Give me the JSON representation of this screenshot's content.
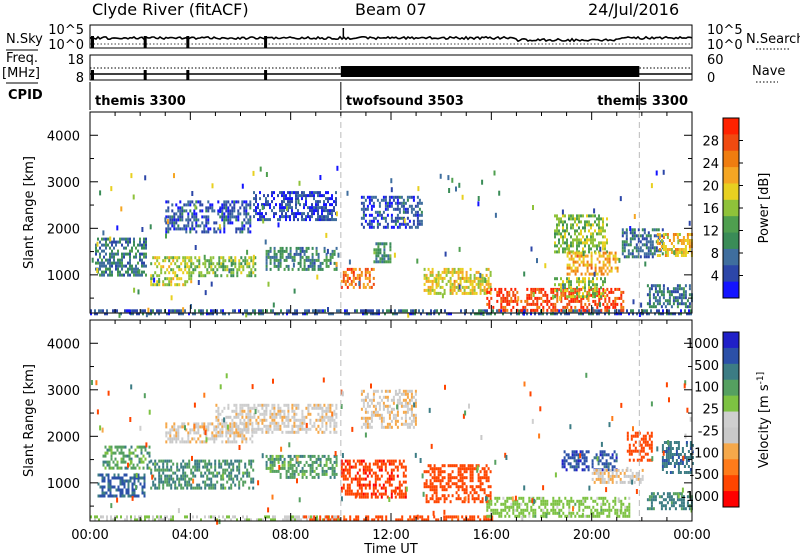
{
  "header": {
    "station": "Clyde River (fitACF)",
    "beam": "Beam 07",
    "date": "24/Jul/2016"
  },
  "summary_panel": {
    "left_labels": [
      "N.Sky",
      "Freq.",
      "[MHz]",
      "CPID"
    ],
    "right_labels": [
      "N.Search",
      "Nave"
    ],
    "nsky_ticks": [
      "10^5",
      "10^0"
    ],
    "nsearch_ticks": [
      "10^5",
      "10^0"
    ],
    "freq_ticks": [
      "18",
      "8"
    ],
    "nave_ticks": [
      "60",
      "0"
    ],
    "cpid_segments": [
      {
        "name": "themis 3300",
        "start_hour": 0.0,
        "end_hour": 10.0
      },
      {
        "name": "twofsound 3503",
        "start_hour": 10.0,
        "end_hour": 21.9
      },
      {
        "name": "themis 3300",
        "start_hour": 21.9,
        "end_hour": 24.0
      }
    ]
  },
  "colors": {
    "power": [
      "#1414ff",
      "#2c46a8",
      "#3f6e9e",
      "#3a8c57",
      "#4f9f4f",
      "#8fc23a",
      "#e8d020",
      "#f5a623",
      "#ef7d10",
      "#f04a10",
      "#ff2200"
    ],
    "velocity": [
      "#ff0000",
      "#ff4500",
      "#ff7b1a",
      "#f5a84a",
      "#c9c9c9",
      "#cfcfcf",
      "#7dc242",
      "#55a060",
      "#3c7c84",
      "#2b50a8",
      "#2020c8"
    ],
    "ground": "#bfbfbf"
  },
  "chart_data": [
    {
      "type": "heatmap",
      "title": "Power",
      "xlabel": "Time UT",
      "ylabel": "Slant Range [km]",
      "xlim": [
        0,
        24
      ],
      "ylim": [
        180,
        4500
      ],
      "x_ticks": [
        "00:00",
        "04:00",
        "08:00",
        "12:00",
        "16:00",
        "20:00",
        "00:00"
      ],
      "y_ticks": [
        "1000",
        "2000",
        "3000",
        "4000"
      ],
      "colorbar": {
        "label": "Power [dB]",
        "ticks": [
          "4",
          "8",
          "12",
          "16",
          "20",
          "24",
          "28"
        ],
        "range": [
          0,
          30
        ]
      },
      "regions": [
        {
          "t0": 0.0,
          "t1": 24.0,
          "r0": 180,
          "r1": 260,
          "value": 6
        },
        {
          "t0": 0.2,
          "t1": 2.2,
          "r0": 1000,
          "r1": 1800,
          "value": 8
        },
        {
          "t0": 2.4,
          "t1": 4.0,
          "r0": 800,
          "r1": 1400,
          "value": 16
        },
        {
          "t0": 3.0,
          "t1": 6.4,
          "r0": 1900,
          "r1": 2600,
          "value": 5
        },
        {
          "t0": 4.0,
          "t1": 6.6,
          "r0": 1000,
          "r1": 1400,
          "value": 14
        },
        {
          "t0": 6.5,
          "t1": 9.8,
          "r0": 2200,
          "r1": 2800,
          "value": 4
        },
        {
          "t0": 7.0,
          "t1": 9.8,
          "r0": 1100,
          "r1": 1600,
          "value": 9
        },
        {
          "t0": 10.0,
          "t1": 11.3,
          "r0": 700,
          "r1": 1150,
          "value": 24
        },
        {
          "t0": 11.3,
          "t1": 12.0,
          "r0": 1300,
          "r1": 1700,
          "value": 10
        },
        {
          "t0": 10.8,
          "t1": 13.2,
          "r0": 2000,
          "r1": 2700,
          "value": 5
        },
        {
          "t0": 13.3,
          "t1": 16.0,
          "r0": 600,
          "r1": 1150,
          "value": 18
        },
        {
          "t0": 15.8,
          "t1": 21.3,
          "r0": 250,
          "r1": 720,
          "value": 27
        },
        {
          "t0": 18.5,
          "t1": 20.5,
          "r0": 500,
          "r1": 950,
          "value": 15
        },
        {
          "t0": 18.5,
          "t1": 20.6,
          "r0": 1500,
          "r1": 2300,
          "value": 14
        },
        {
          "t0": 19.0,
          "t1": 21.0,
          "r0": 1000,
          "r1": 1500,
          "value": 21
        },
        {
          "t0": 21.2,
          "t1": 22.8,
          "r0": 1400,
          "r1": 2000,
          "value": 7
        },
        {
          "t0": 22.6,
          "t1": 24.0,
          "r0": 1400,
          "r1": 1900,
          "value": 19
        },
        {
          "t0": 22.2,
          "t1": 24.0,
          "r0": 300,
          "r1": 800,
          "value": 7
        }
      ]
    },
    {
      "type": "heatmap",
      "title": "Velocity",
      "xlabel": "Time UT",
      "ylabel": "Slant Range [km]",
      "xlim": [
        0,
        24
      ],
      "ylim": [
        180,
        4500
      ],
      "x_ticks": [
        "00:00",
        "04:00",
        "08:00",
        "12:00",
        "16:00",
        "20:00",
        "00:00"
      ],
      "y_ticks": [
        "1000",
        "2000",
        "3000",
        "4000"
      ],
      "colorbar": {
        "label": "Velocity [m s^-1]",
        "ticks": [
          "1000",
          "500",
          "100",
          "25",
          "-25",
          "-100",
          "-500",
          "-1000"
        ]
      },
      "regions": [
        {
          "t0": 0.0,
          "t1": 10.0,
          "r0": 180,
          "r1": 300,
          "value": 20
        },
        {
          "t0": 8.5,
          "t1": 16.0,
          "r0": 180,
          "r1": 300,
          "value": -150
        },
        {
          "t0": 0.3,
          "t1": 2.2,
          "r0": 700,
          "r1": 1200,
          "value": 600
        },
        {
          "t0": 0.5,
          "t1": 2.4,
          "r0": 1300,
          "r1": 1800,
          "value": 150
        },
        {
          "t0": 2.4,
          "t1": 6.5,
          "r0": 900,
          "r1": 1500,
          "value": 200
        },
        {
          "t0": 3.0,
          "t1": 6.5,
          "r0": 1900,
          "r1": 2300,
          "value": 0
        },
        {
          "t0": 5.0,
          "t1": 9.8,
          "r0": 2100,
          "r1": 2700,
          "value": 5
        },
        {
          "t0": 7.0,
          "t1": 9.8,
          "r0": 1100,
          "r1": 1600,
          "value": 150
        },
        {
          "t0": 10.0,
          "t1": 12.6,
          "r0": 700,
          "r1": 1500,
          "value": -400
        },
        {
          "t0": 10.8,
          "t1": 13.0,
          "r0": 2200,
          "r1": 3000,
          "value": 0
        },
        {
          "t0": 13.3,
          "t1": 16.0,
          "r0": 600,
          "r1": 1400,
          "value": -350
        },
        {
          "t0": 15.8,
          "t1": 21.5,
          "r0": 250,
          "r1": 700,
          "value": 60
        },
        {
          "t0": 18.8,
          "t1": 21.0,
          "r0": 1300,
          "r1": 1700,
          "value": 800
        },
        {
          "t0": 20.0,
          "t1": 22.0,
          "r0": 1000,
          "r1": 1300,
          "value": 0
        },
        {
          "t0": 21.4,
          "t1": 22.4,
          "r0": 1500,
          "r1": 2100,
          "value": -300
        },
        {
          "t0": 22.8,
          "t1": 24.0,
          "r0": 1200,
          "r1": 1900,
          "value": 400
        },
        {
          "t0": 22.2,
          "t1": 24.0,
          "r0": 450,
          "r1": 800,
          "value": 300
        }
      ]
    }
  ]
}
